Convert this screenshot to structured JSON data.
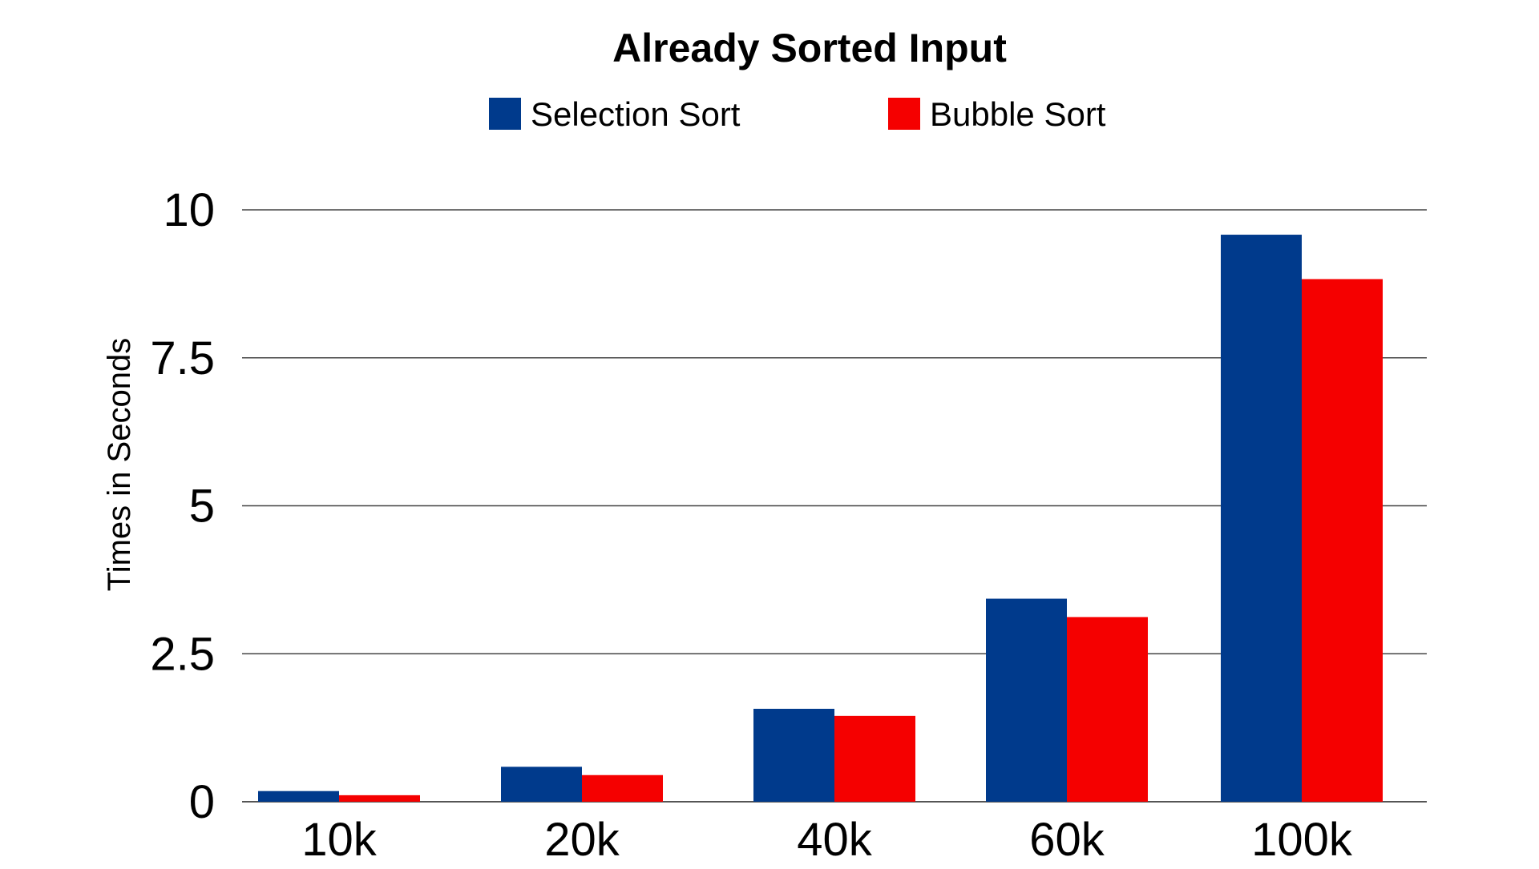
{
  "chart_data": {
    "type": "bar",
    "title": "Already Sorted Input",
    "xlabel": "",
    "ylabel": "Times in Seconds",
    "categories": [
      "10k",
      "20k",
      "40k",
      "60k",
      "100k"
    ],
    "series": [
      {
        "name": "Selection Sort",
        "color": "#003a8c",
        "values": [
          0.18,
          0.59,
          1.57,
          3.43,
          9.58
        ]
      },
      {
        "name": "Bubble Sort",
        "color": "#f50000",
        "values": [
          0.11,
          0.45,
          1.45,
          3.12,
          8.83
        ]
      }
    ],
    "ylim": [
      0,
      10
    ],
    "yticks": [
      "0",
      "2.5",
      "5",
      "7.5",
      "10"
    ],
    "ytick_values": [
      0,
      2.5,
      5,
      7.5,
      10
    ],
    "grid": true,
    "legend_position": "top-center"
  }
}
